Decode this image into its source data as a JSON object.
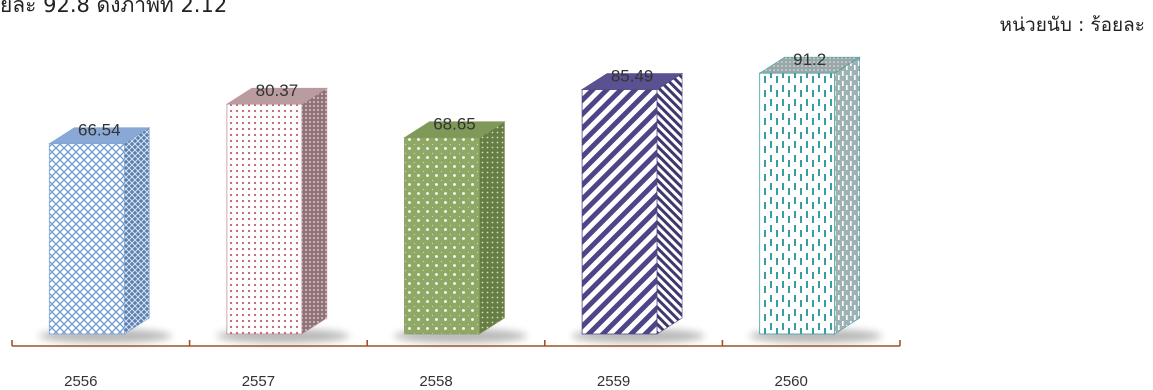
{
  "header": {
    "text": "ยละ 92.8 ดังภาพที่ 2.12",
    "unit_label": "หน่วยนับ : ร้อยละ"
  },
  "chart_data": {
    "type": "bar",
    "categories": [
      "2556",
      "2557",
      "2558",
      "2559",
      "2560"
    ],
    "values": [
      66.54,
      80.37,
      68.65,
      85.49,
      91.2
    ],
    "data_labels": [
      "66.54",
      "80.37",
      "68.65",
      "85.49",
      "91.2"
    ],
    "title": "",
    "xlabel": "",
    "ylabel": "",
    "ylim": [
      0,
      100
    ],
    "grid": false,
    "legend": "none",
    "style": "3d-column-patterned",
    "colors": [
      "#7ea6d8",
      "#c38f9a",
      "#839c5c",
      "#4e4586",
      "#3a9ea0"
    ],
    "axis_color": "#a0522d"
  }
}
